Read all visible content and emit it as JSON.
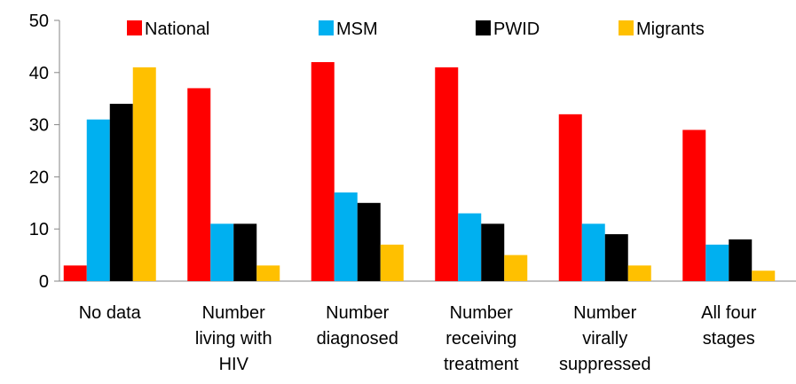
{
  "chart_data": {
    "type": "bar",
    "title": "",
    "xlabel": "",
    "ylabel": "",
    "ylim": [
      0,
      50
    ],
    "yticks": [
      0,
      10,
      20,
      30,
      40,
      50
    ],
    "grid": false,
    "legend_position": "top",
    "categories": [
      [
        "No data"
      ],
      [
        "Number",
        "living with",
        "HIV"
      ],
      [
        "Number",
        "diagnosed"
      ],
      [
        "Number",
        "receiving",
        "treatment"
      ],
      [
        "Number",
        "virally",
        "suppressed"
      ],
      [
        "All four",
        "stages"
      ]
    ],
    "series": [
      {
        "name": "National",
        "color": "#FF0000",
        "values": [
          3,
          37,
          42,
          41,
          32,
          29
        ]
      },
      {
        "name": "MSM",
        "color": "#00B0F0",
        "values": [
          31,
          11,
          17,
          13,
          11,
          7
        ]
      },
      {
        "name": "PWID",
        "color": "#000000",
        "values": [
          34,
          11,
          15,
          11,
          9,
          8
        ]
      },
      {
        "name": "Migrants",
        "color": "#FFC000",
        "values": [
          41,
          3,
          7,
          5,
          3,
          2
        ]
      }
    ]
  }
}
